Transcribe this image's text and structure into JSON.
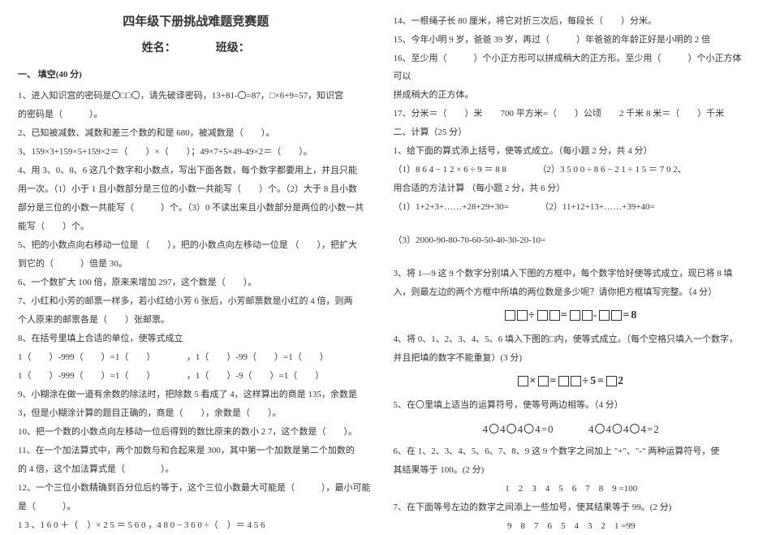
{
  "doc": {
    "title": "四年级下册挑战难题竞赛题",
    "subtitle_name": "姓名：",
    "subtitle_class": "班级：",
    "section1": "一、 填空(40 分)",
    "left": {
      "q1": "1、进入知识宫的密码是〇□□〇，请先破译密码，13+81-〇=87，□×6+9=57，知识宫",
      "q1b": "的密码是（　　　）。",
      "q2": "2、已知被减数、减数和差三个数的和是 680，被减数是（　　）。",
      "q3": "3、159×3+159×5+159×2＝（　　）×（　　）；49×7+5×49-49×2＝（　　）。",
      "q4": "4、用 3、0、8、6 这几个数字和小数点，写出下面各数，每个数字都要用上，并且只能",
      "q4b": "用一次。（1）小于 1 且小数部分是三位的小数一共能写（　　）个。（2）大于 8 且小数",
      "q4c": "部分是三位的小数一共能写（　　　）个。（3）0 不读出来且小数部分是两位的小数一共",
      "q4d": "能写（　　）个。",
      "q5": "5、把的小数点向右移动一位是 （　　），把的小数点向左移动一位是 （　　），把扩大",
      "q5b": "到它的（　　　）倍是 30。",
      "q6": "6、一个数扩大 100 倍，原来来增加 297，这个数是（　　）。",
      "q7": "7、小红和小芳的邮票一样多，若小红给小芳 6 张后，小芳邮票数是小红的 4 倍，则两",
      "q7b": "个人原来的邮票各是（　　）张邮票。",
      "q8": "8、在括号里填上合适的单位，使等式成立",
      "q8a": "1（　　）-999（　　）=1（　　）　　　　，1（　　）-99（　　）=1（　　）",
      "q8b": "1（　　）-999（　　）=1（　　）　　　　，1（　　）-9（　　）=1（　　）",
      "q9": "9、小糊涂在做一道有余数的除法时，把除数 5 看成了 4，这样算出的商是 135，余数是",
      "q9b": "3，但是小糊涂计算的题目正确的，商是（　　），余数是（　　）。",
      "q10": "10、把一个数的小数点向左移动一位后得到的数比原来的数小 2 7，这个数是（　　）。",
      "q11": "11、在一个加法算式中，两个加数与和合起来是 300，其中第一个加数是第二个加数的",
      "q11b": "的 4 倍，这个加法算式是（　　　　）。",
      "q12": "12、一个三位小数精确到百分位后约等于，这个三位小数最大可能是（　　　），最小可能",
      "q12b": "是（　　　）。",
      "q13": "1 3 、1 6 0 ＋（　）× 2 5 ＝ 5 6 0 ，4 8 0 − 3 6 0 ÷（　）＝ 4 5 6"
    },
    "right": {
      "q14": "14、一根绳子长 80 厘米，将它对折三次后，每段长（　　）分米。",
      "q15": "15、今年小明 9 岁，爸爸 39 岁，再过（　　　）年爸爸的年龄正好是小明的 2 倍",
      "q16": "16、至少用（　　　）个小正方形可以拼成稍大的正方形。至少用（　　　）个小正方体可以",
      "q16b": "拼成稍大的正方体。",
      "q17": "17、分米＝（　　）米　　700 平方米=（　　）公顷　　2 千米 8 米＝（　　）千米",
      "section2": "二、计算（25 分）",
      "c1": "1、给下面的算式添上括号，使等式成立。（每小题 2 分，共 4 分）",
      "c1a": "（1）8 6 4 − 1 2 × 6 ÷ 9 ＝ 8 8　　　　（2）3 5 0 0 ÷ 8 6 − 2 1 ÷ 1 5 ＝ 7 0 2、",
      "c1b": "用合适的方法计算 （每小题 2 分，共 6 分）",
      "c1c": "（1）1+2+3+……+28+29+30=　　　　（2）11+12+13+……+39+40=",
      "c1d": "（3）2000-90-80-70-60-50-40-30-20-10=",
      "c3": "3、将 1—9 这 9 个数字分别填入下图的方框中，每个数字恰好使等式成立，现已将 8 填",
      "c3b": "入，则最左边的两个方框中所填的两位数是多少呢？请你把方框填写完整。（4 分）",
      "formula1": "□□÷□□=□□-□□=8",
      "c4": "4、将 0、1、2、3、4、5、6 填入下图的□内，使等式成立。（每个空格只填入一个数字，",
      "c4b": "并且把填的数字不能重复）(3 分)",
      "formula2": "□×□=□□÷5=□2",
      "c5": "5、在〇里填上适当的运算符号，使等号两边相等。（4 分）",
      "formula3a": "4〇4〇4〇4=0",
      "formula3b": "4〇4〇4〇4=2",
      "c6": "6、在 1、2、3、4、5、6、7、8、9 这 9 个数字之间加上 \"+\"、\"-\" 两种运算符号，使",
      "c6b": "其结果等于 100。(2 分)",
      "c6c": "1　2　3　4　5　6　7　8　9 =100",
      "c7": "7、在下面等号左边的数字之间添上一些加号，使其结果等于 99。(2 分)",
      "c7b": "9　8　7　6　5　4　3　2　1 =99"
    },
    "colors": {
      "text": "#333333",
      "bg": "#ffffff"
    }
  }
}
